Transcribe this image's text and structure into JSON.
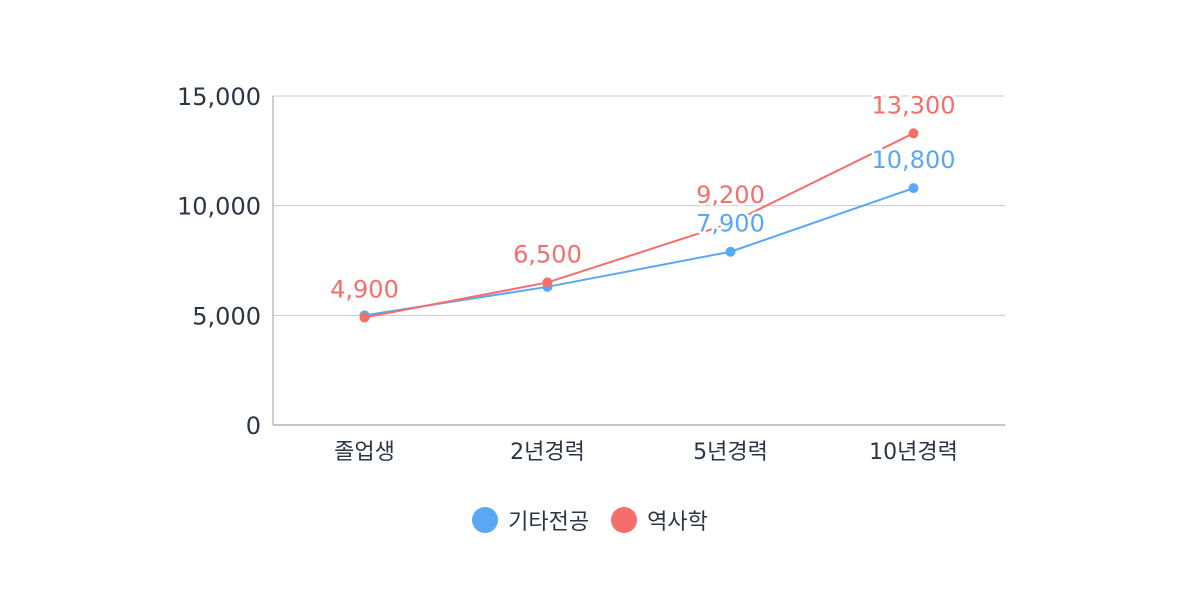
{
  "chart_data": {
    "type": "line",
    "categories": [
      "졸업생",
      "2년경력",
      "5년경력",
      "10년경력"
    ],
    "series": [
      {
        "name": "기타전공",
        "values": [
          5000,
          6300,
          7900,
          10800
        ],
        "color": "#5aa7f5",
        "labels": [
          "",
          "",
          "7,900",
          "10,800"
        ]
      },
      {
        "name": "역사학",
        "values": [
          4900,
          6500,
          9200,
          13300
        ],
        "color": "#f56e6b",
        "labels": [
          "4,900",
          "6,500",
          "9,200",
          "13,300"
        ]
      }
    ],
    "y_ticks": [
      "0",
      "5,000",
      "10,000",
      "15,000"
    ],
    "ylim": [
      0,
      15000
    ],
    "grid": true,
    "legend_position": "bottom"
  }
}
